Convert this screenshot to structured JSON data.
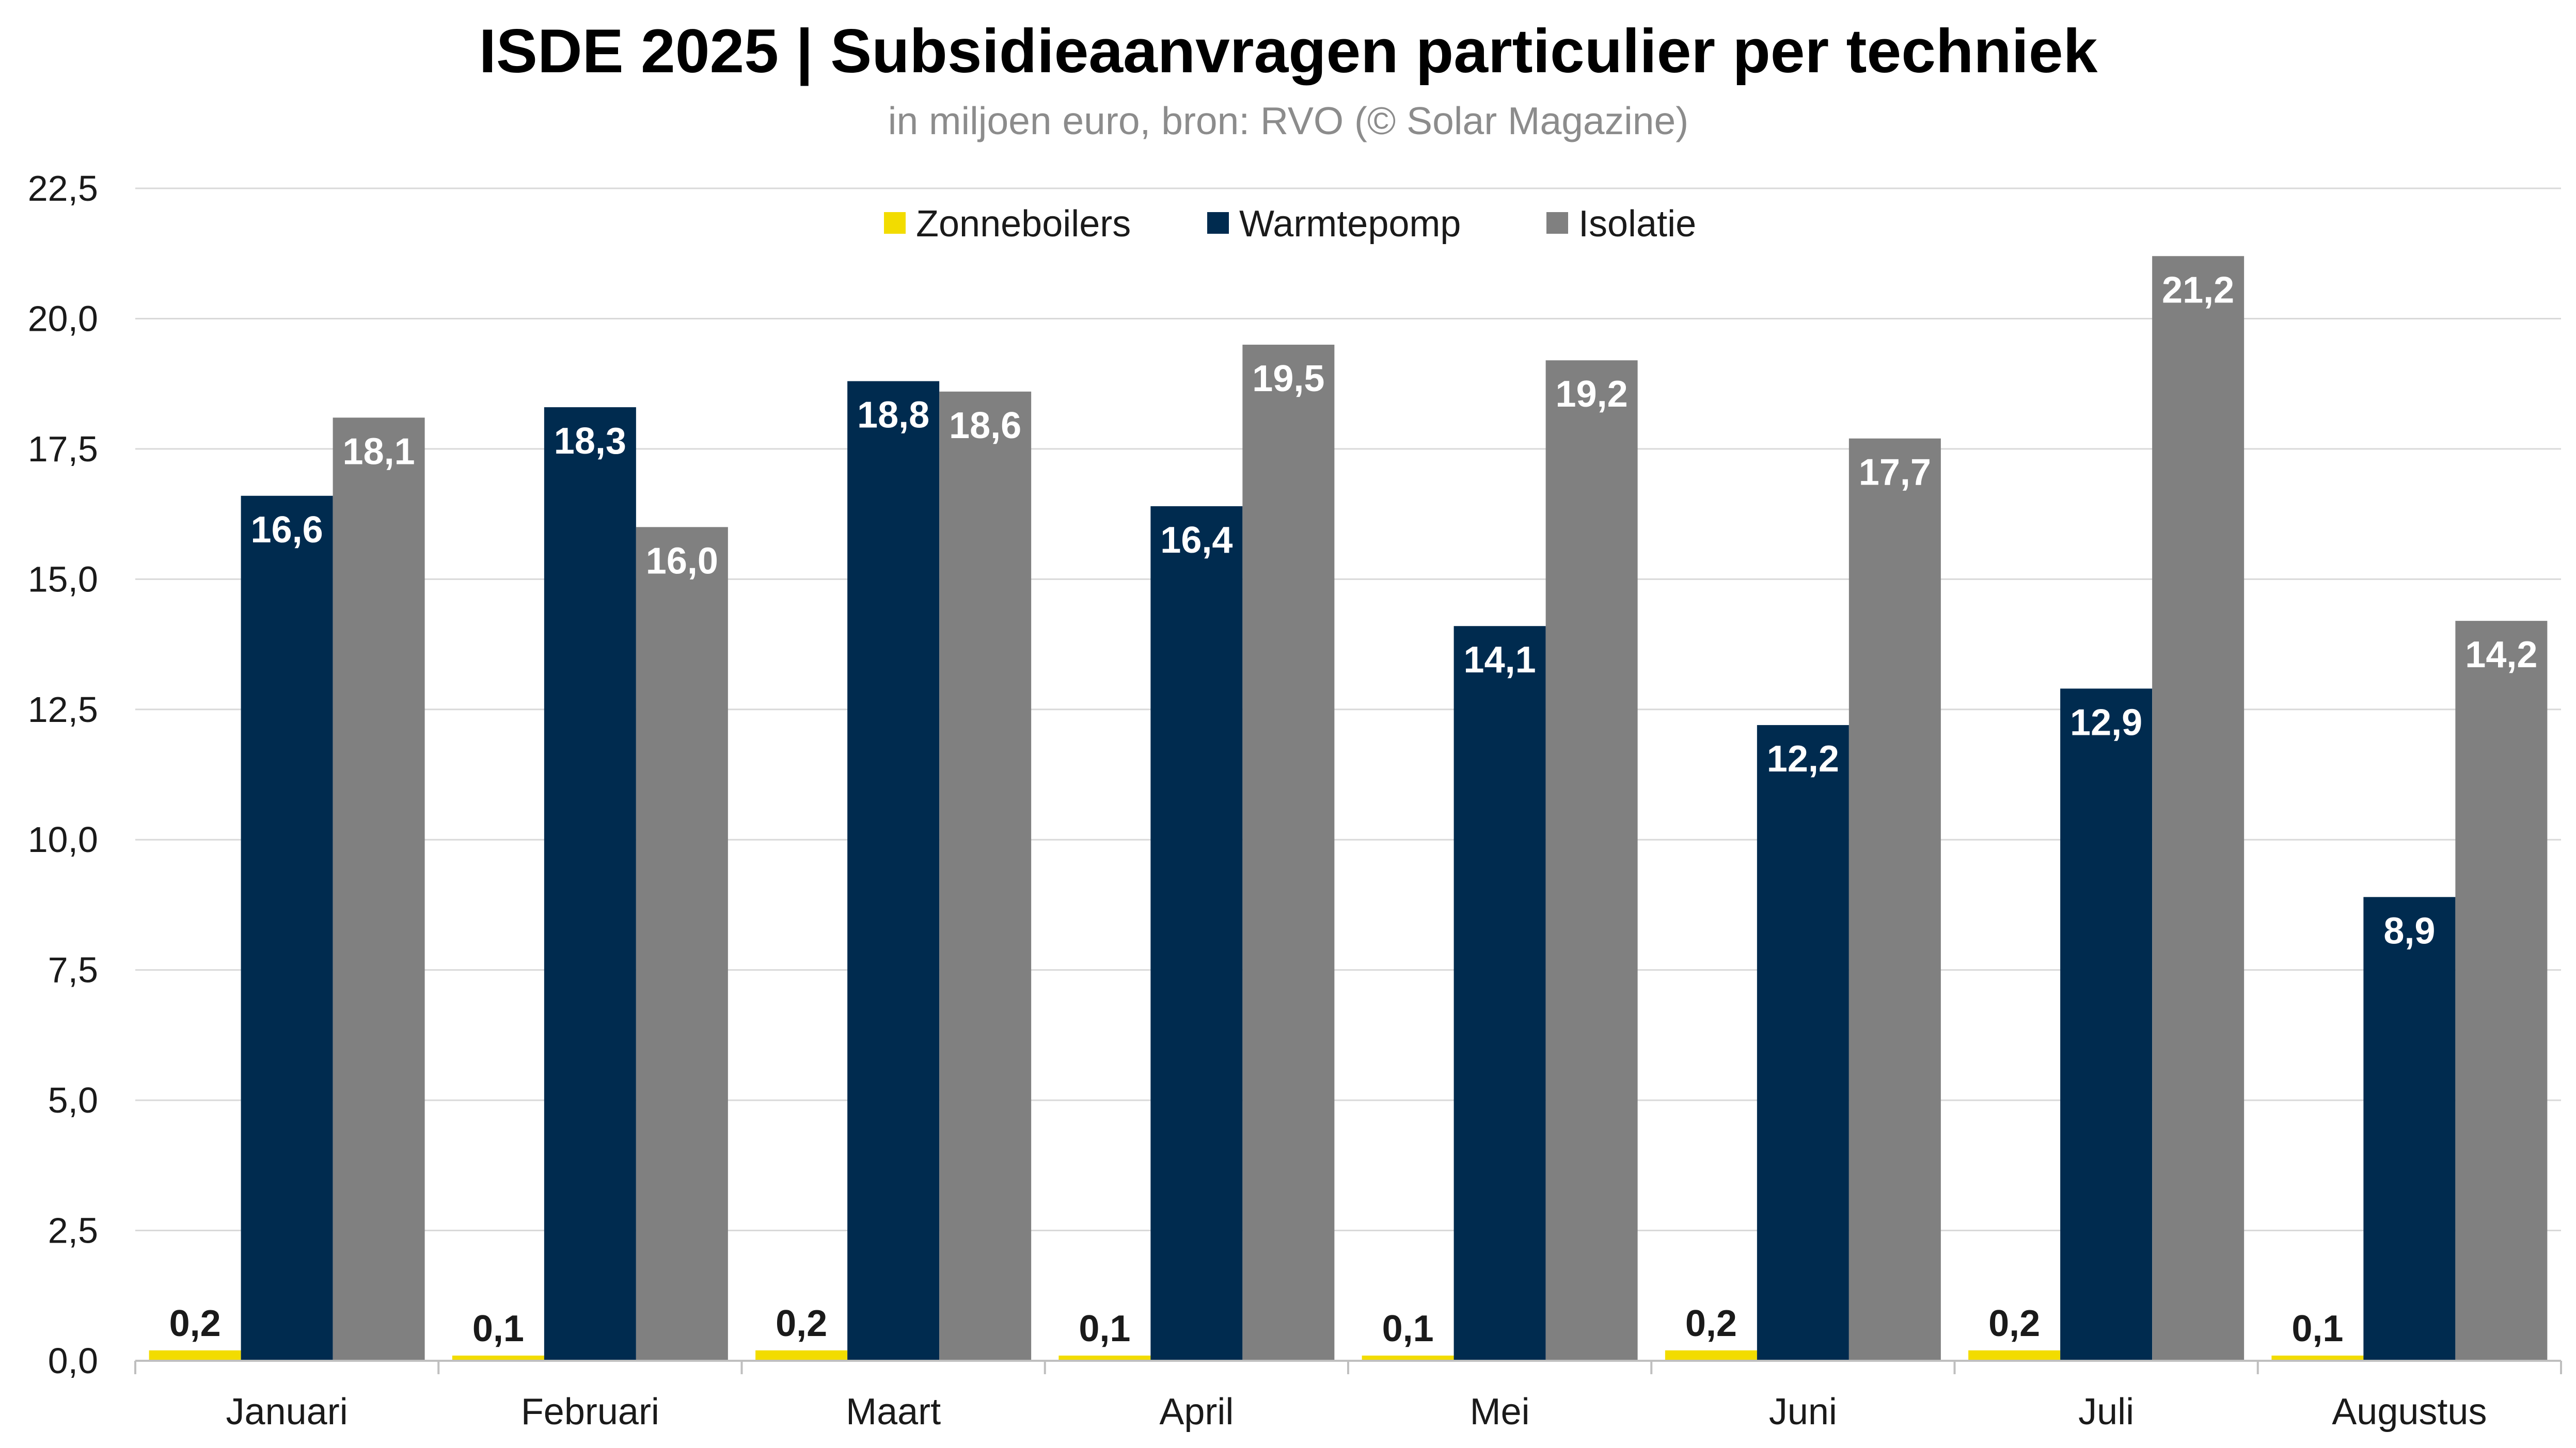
{
  "chart_data": {
    "type": "bar",
    "title": "ISDE 2025 | Subsidieaanvragen particulier per techniek",
    "subtitle": "in miljoen euro, bron: RVO (© Solar Magazine)",
    "categories": [
      "Januari",
      "Februari",
      "Maart",
      "April",
      "Mei",
      "Juni",
      "Juli",
      "Augustus"
    ],
    "series": [
      {
        "name": "Zonneboilers",
        "color": "#f2dc00",
        "values": [
          0.2,
          0.1,
          0.2,
          0.1,
          0.1,
          0.2,
          0.2,
          0.1
        ],
        "labels": [
          "0,2",
          "0,1",
          "0,2",
          "0,1",
          "0,1",
          "0,2",
          "0,2",
          "0,1"
        ]
      },
      {
        "name": "Warmtepomp",
        "color": "#002b4f",
        "values": [
          16.6,
          18.3,
          18.8,
          16.4,
          14.1,
          12.2,
          12.9,
          8.9
        ],
        "labels": [
          "16,6",
          "18,3",
          "18,8",
          "16,4",
          "14,1",
          "12,2",
          "12,9",
          "8,9"
        ]
      },
      {
        "name": "Isolatie",
        "color": "#808080",
        "values": [
          18.1,
          16.0,
          18.6,
          19.5,
          19.2,
          17.7,
          21.2,
          14.2
        ],
        "labels": [
          "18,1",
          "16,0",
          "18,6",
          "19,5",
          "19,2",
          "17,7",
          "21,2",
          "14,2"
        ]
      }
    ],
    "ylim": [
      0,
      22.5
    ],
    "yticks": [
      0,
      2.5,
      5,
      7.5,
      10,
      12.5,
      15,
      17.5,
      20,
      22.5
    ],
    "ytick_labels": [
      "0,0",
      "2,5",
      "5,0",
      "7,5",
      "10,0",
      "12,5",
      "15,0",
      "17,5",
      "20,0",
      "22,5"
    ],
    "grid": true,
    "legend_position": "top-center"
  }
}
